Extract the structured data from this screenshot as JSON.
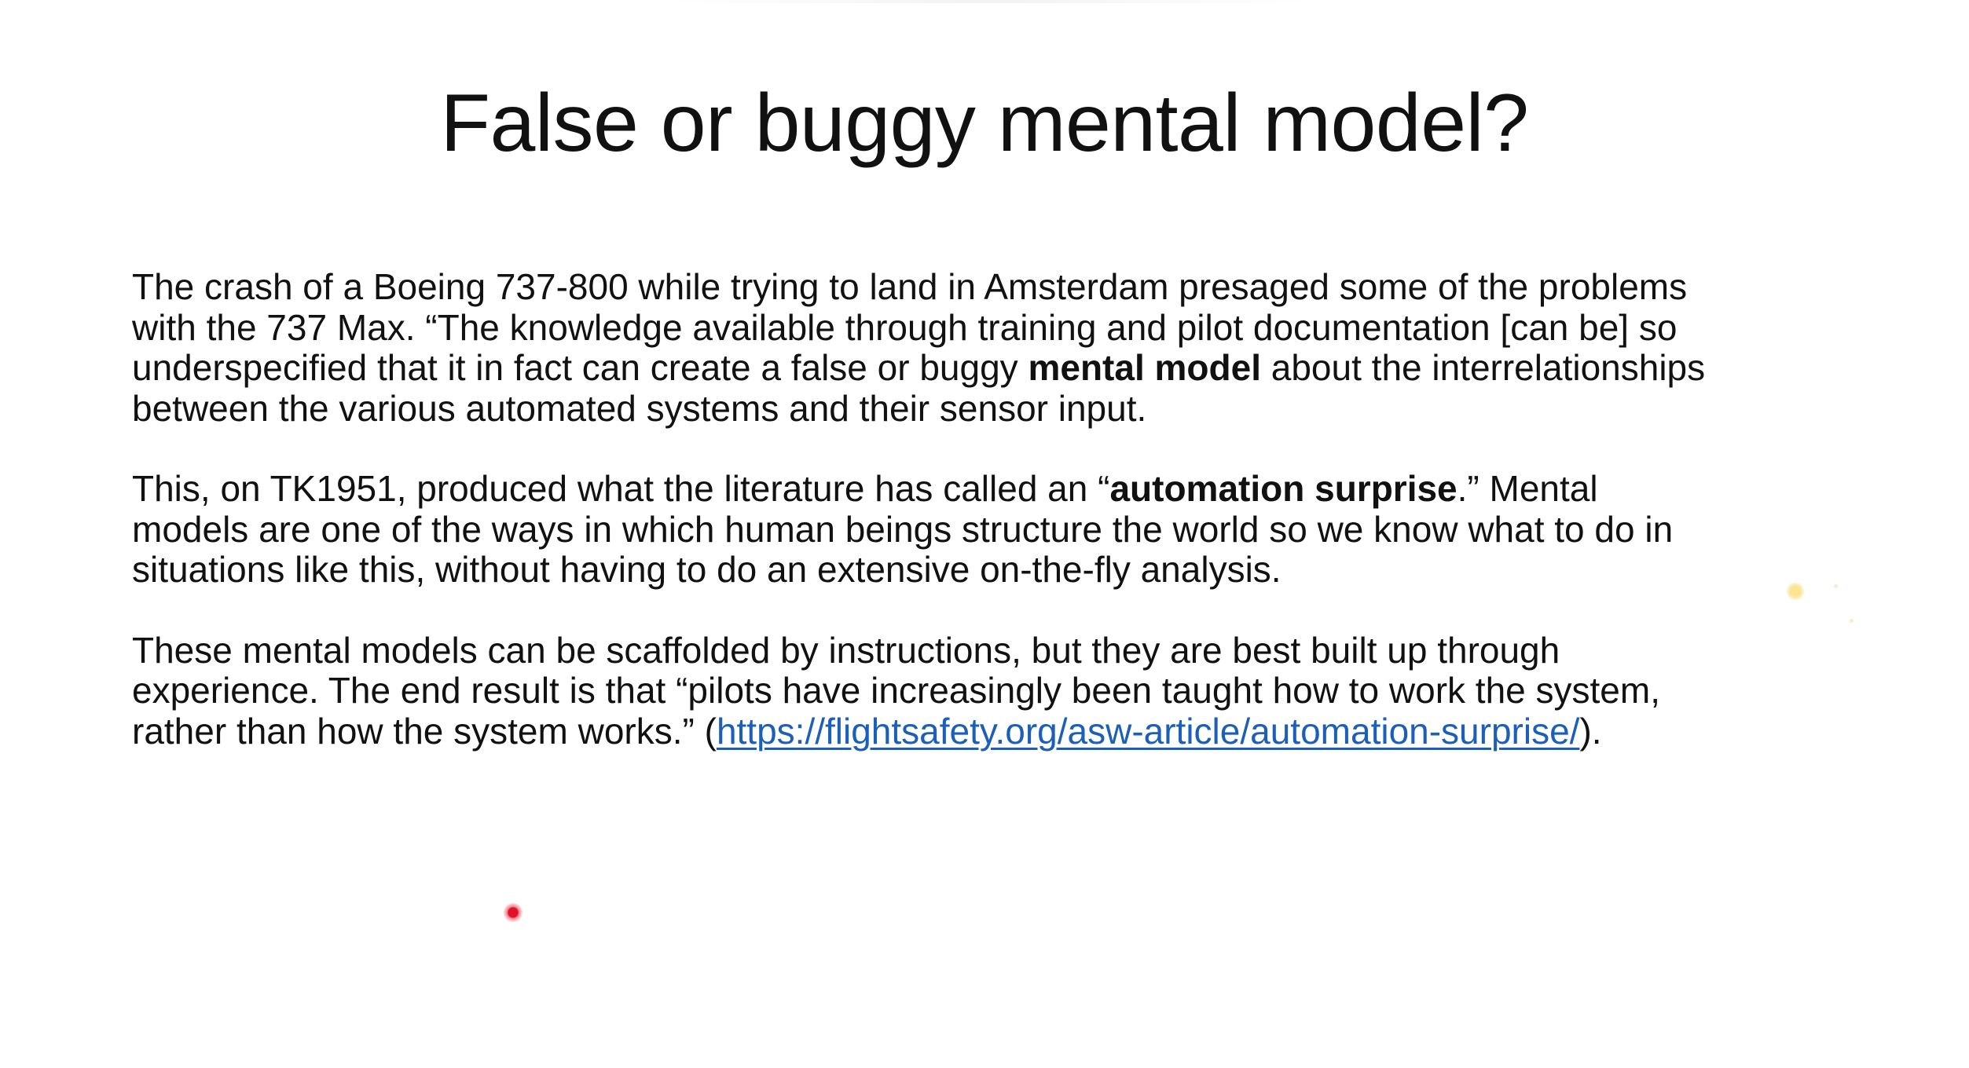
{
  "slide": {
    "title": "False or buggy mental model?",
    "paragraph1": {
      "line1": "The crash of a Boeing 737-800 while trying to land in Amsterdam presaged some of the problems",
      "line2": "with the 737 Max.   “The knowledge available through training and pilot documentation  [can be] so",
      "line3_before": "underspecified that it in fact can create a false or buggy ",
      "line3_bold": "mental model",
      "line3_after": " about the interrelationships",
      "line4": "between the various automated systems and their sensor input."
    },
    "paragraph2": {
      "line1_before": "This, on TK1951, produced what the literature has called an “",
      "line1_bold": "automation surprise",
      "line1_after": ".”   Mental",
      "line2": "models are one of the ways in which human beings structure the world so we know what to do in",
      "line3": "situations like this, without having to do an extensive on-the-fly analysis."
    },
    "paragraph3": {
      "line1": "These mental models can be scaffolded by instructions, but they are best built up through",
      "line2": "experience. The end result is that “pilots have increasingly been taught how to work the system,",
      "line3_before": "rather than how the system works.” (",
      "link_text": "https://flightsafety.org/asw-article/automation-surprise/",
      "line3_after": ")."
    }
  },
  "colors": {
    "background": "#ffffff",
    "text": "#111111",
    "link": "#1b5fb8",
    "pointer": "#e0102a"
  }
}
